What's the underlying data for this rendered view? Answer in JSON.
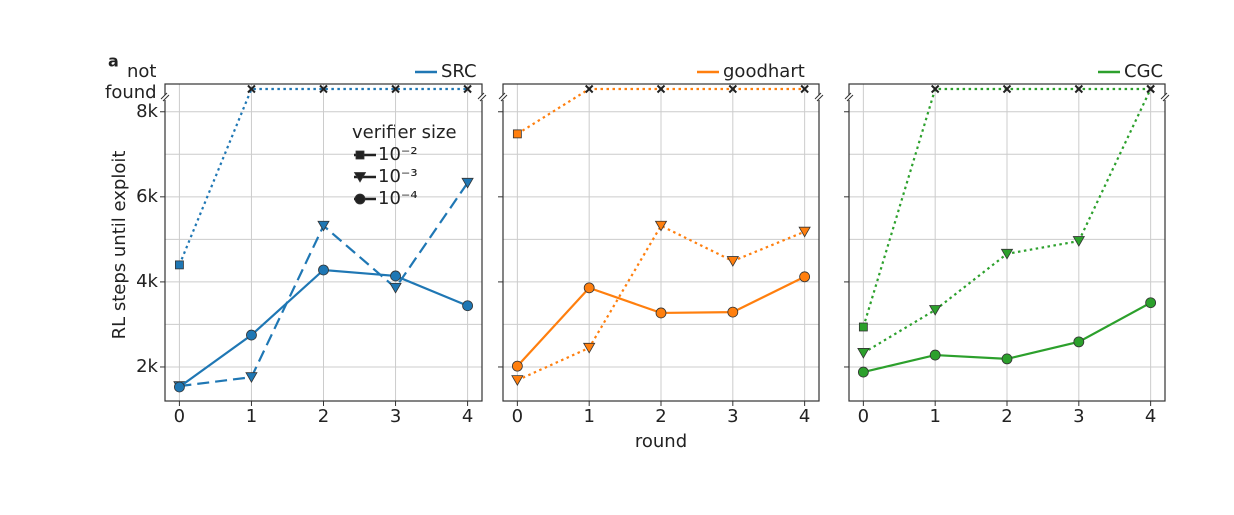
{
  "chart_data": [
    {
      "type": "line",
      "panel_label": "a",
      "name": "SRC",
      "color": "#1f77b4",
      "legend": "upper right",
      "ylabel": "RL steps until exploit",
      "not_found_label": [
        "not",
        "found"
      ],
      "legend_title": "verifier size",
      "xlim": [
        -0.2,
        4.2
      ],
      "xticks": [
        0,
        1,
        2,
        3,
        4
      ],
      "ylim": [
        1200,
        8300
      ],
      "yticks": [
        {
          "value": 2000,
          "label": "2k"
        },
        {
          "value": 4000,
          "label": "4k"
        },
        {
          "value": 6000,
          "label": "6k"
        },
        {
          "value": 8000,
          "label": "8k"
        }
      ],
      "yminor": [
        3000,
        5000,
        7000
      ],
      "grid": true,
      "x": [
        0,
        1,
        2,
        3,
        4
      ],
      "series": [
        {
          "name": "10⁻²",
          "marker": "square",
          "linestyle": "dotted",
          "values": [
            4400,
            null,
            null,
            null,
            null
          ],
          "not_found": [
            1,
            2,
            3,
            4
          ]
        },
        {
          "name": "10⁻³",
          "marker": "triangle",
          "linestyle": "dashed",
          "values": [
            1550,
            1760,
            5320,
            3860,
            6330
          ]
        },
        {
          "name": "10⁻⁴",
          "marker": "circle",
          "linestyle": "solid",
          "values": [
            1530,
            2750,
            4280,
            4140,
            3440
          ]
        }
      ]
    },
    {
      "type": "line",
      "name": "goodhart",
      "color": "#ff7f0e",
      "legend": "upper right",
      "xlabel": "round",
      "xlim": [
        -0.2,
        4.2
      ],
      "xticks": [
        0,
        1,
        2,
        3,
        4
      ],
      "ylim": [
        1200,
        8300
      ],
      "yticks": [
        2000,
        4000,
        6000,
        8000
      ],
      "yminor": [
        3000,
        5000,
        7000
      ],
      "grid": true,
      "x": [
        0,
        1,
        2,
        3,
        4
      ],
      "series": [
        {
          "marker": "square",
          "linestyle": "dotted",
          "values": [
            7480,
            null,
            null,
            null,
            null
          ],
          "not_found": [
            1,
            2,
            3,
            4
          ]
        },
        {
          "marker": "triangle",
          "linestyle": "dotted",
          "values": [
            1690,
            2450,
            5320,
            4490,
            5180
          ]
        },
        {
          "marker": "circle",
          "linestyle": "solid",
          "values": [
            2020,
            3860,
            3270,
            3290,
            4120
          ]
        }
      ]
    },
    {
      "type": "line",
      "name": "CGC",
      "color": "#2ca02c",
      "legend": "upper right",
      "xlim": [
        -0.2,
        4.2
      ],
      "xticks": [
        0,
        1,
        2,
        3,
        4
      ],
      "ylim": [
        1200,
        8300
      ],
      "yticks": [
        2000,
        4000,
        6000,
        8000
      ],
      "yminor": [
        3000,
        5000,
        7000
      ],
      "grid": true,
      "x": [
        0,
        1,
        2,
        3,
        4
      ],
      "series": [
        {
          "marker": "square",
          "linestyle": "dotted",
          "values": [
            2940,
            null,
            null,
            null,
            null
          ],
          "not_found": [
            1,
            2,
            3,
            4
          ]
        },
        {
          "marker": "triangle",
          "linestyle": "dotted",
          "values": [
            2330,
            3340,
            4660,
            4960,
            null
          ],
          "not_found": [
            4
          ]
        },
        {
          "marker": "circle",
          "linestyle": "solid",
          "values": [
            1880,
            2280,
            2190,
            2590,
            3510
          ]
        }
      ]
    }
  ]
}
